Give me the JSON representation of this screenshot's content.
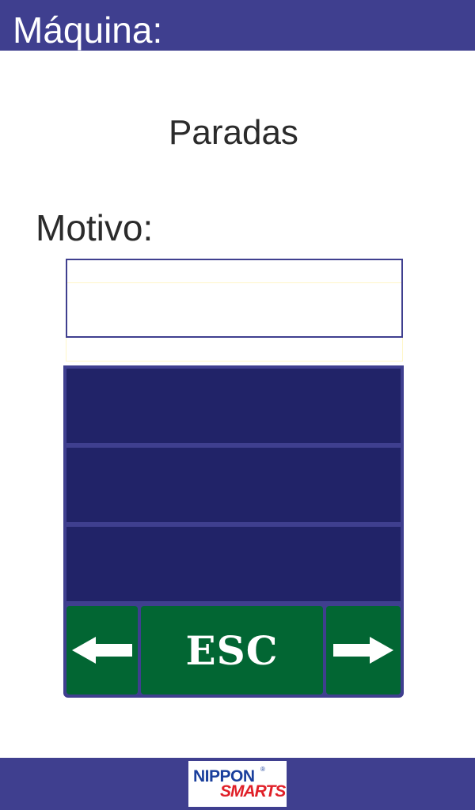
{
  "header": {
    "title": "Máquina:"
  },
  "main": {
    "page_title": "Paradas",
    "motivo_label": "Motivo:",
    "motivo_value": "",
    "options": [
      {
        "label": ""
      },
      {
        "label": ""
      },
      {
        "label": ""
      }
    ]
  },
  "nav": {
    "prev_icon": "arrow-left-icon",
    "esc_label": "ESC",
    "next_icon": "arrow-right-icon"
  },
  "footer": {
    "logo_top": "NIPPON",
    "logo_bottom": "SMARTS",
    "logo_reg": "®"
  },
  "colors": {
    "header_bg": "#3f3f8f",
    "option_bg": "#212368",
    "button_bg": "#026633",
    "logo_blue": "#1a3f9c",
    "logo_red": "#e02028"
  }
}
